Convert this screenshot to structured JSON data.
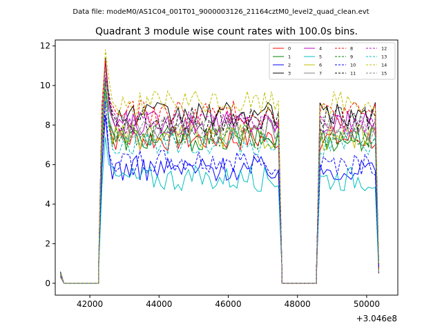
{
  "header": {
    "suptitle": "Data file: modeM0/AS1C04_001T01_9000003126_21164cztM0_level2_quad_clean.evt",
    "title": "Quadrant 3 module wise count rates with 100.0s bins."
  },
  "chart_data": {
    "type": "line",
    "title": "Quadrant 3 module wise count rates with 100.0s bins.",
    "xlabel": "",
    "ylabel": "",
    "x_offset_label": "+3.046e8",
    "x_offset": 304600000,
    "xlim": [
      41000,
      50900
    ],
    "ylim": [
      -0.6,
      12.3
    ],
    "x_ticks": [
      42000,
      44000,
      46000,
      48000,
      50000
    ],
    "x_tick_labels": [
      "42000",
      "44000",
      "46000",
      "48000",
      "50000"
    ],
    "y_ticks": [
      0,
      2,
      4,
      6,
      8,
      10,
      12
    ],
    "y_tick_labels": [
      "0",
      "2",
      "4",
      "6",
      "8",
      "10",
      "12"
    ],
    "grid": false,
    "legend_position": "top-right",
    "legend_columns": 4,
    "segments": [
      {
        "start": 41150,
        "end": 41350,
        "kind": "ramp_down"
      },
      {
        "start": 41350,
        "end": 42250,
        "kind": "zero"
      },
      {
        "start": 42250,
        "end": 47550,
        "kind": "on",
        "peak_x": 42450
      },
      {
        "start": 47550,
        "end": 48550,
        "kind": "zero"
      },
      {
        "start": 48550,
        "end": 50350,
        "kind": "on"
      }
    ],
    "series": [
      {
        "name": "0",
        "color": "#ff0000",
        "dash": false,
        "level": 7.3
      },
      {
        "name": "1",
        "color": "#008000",
        "dash": false,
        "level": 7.3
      },
      {
        "name": "2",
        "color": "#0000ff",
        "dash": false,
        "level": 5.8
      },
      {
        "name": "3",
        "color": "#000000",
        "dash": false,
        "level": 8.5
      },
      {
        "name": "4",
        "color": "#bf00bf",
        "dash": false,
        "level": 8.1
      },
      {
        "name": "5",
        "color": "#00bfbf",
        "dash": false,
        "level": 5.3
      },
      {
        "name": "6",
        "color": "#bfbf00",
        "dash": false,
        "level": 7.4
      },
      {
        "name": "7",
        "color": "#808080",
        "dash": false,
        "level": 7.7
      },
      {
        "name": "8",
        "color": "#ff0000",
        "dash": true,
        "level": 8.6
      },
      {
        "name": "9",
        "color": "#008000",
        "dash": true,
        "level": 7.4
      },
      {
        "name": "10",
        "color": "#0000ff",
        "dash": true,
        "level": 6.1
      },
      {
        "name": "11",
        "color": "#000000",
        "dash": true,
        "level": 8.3
      },
      {
        "name": "12",
        "color": "#bf00bf",
        "dash": true,
        "level": 8.1
      },
      {
        "name": "13",
        "color": "#00bfbf",
        "dash": true,
        "level": 7.1
      },
      {
        "name": "14",
        "color": "#bfbf00",
        "dash": true,
        "level": 9.1
      },
      {
        "name": "15",
        "color": "#808080",
        "dash": true,
        "level": 7.9
      }
    ]
  }
}
